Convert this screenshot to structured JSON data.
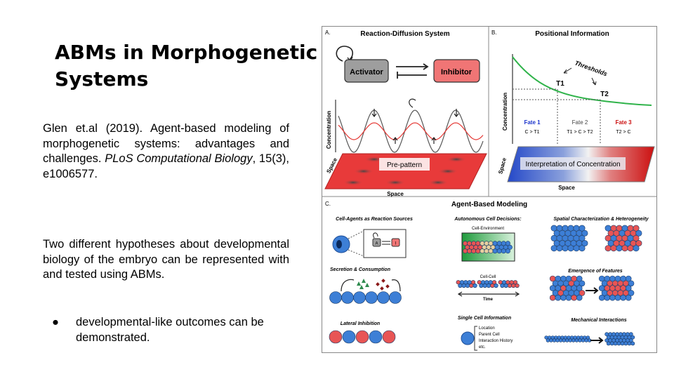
{
  "slide": {
    "title_line1": "ABMs in Morphogenetic",
    "title_line2": "Systems",
    "citation": {
      "part1": "Glen et.al (2019). Agent-based modeling of morphogenetic systems: advantages and challenges. ",
      "journal": "PLoS Computational Biology",
      "part2": ", 15(3), e1006577."
    },
    "paragraph": "Two different hypotheses about developmental biology of the embryo can be represented with and tested using ABMs.",
    "bullets": [
      {
        "marker": "●",
        "text": "developmental-like outcomes can be demonstrated."
      }
    ]
  },
  "figure": {
    "panel_a": {
      "letter": "A.",
      "title": "Reaction-Diffusion System",
      "activator": "Activator",
      "inhibitor": "Inhibitor",
      "ylabel": "Concentration",
      "space_side": "Space",
      "space_bottom": "Space",
      "prepattern": "Pre-pattern"
    },
    "panel_b": {
      "letter": "B.",
      "title": "Positional Information",
      "thresholds": "Thresholds",
      "t1": "T1",
      "t2": "T2",
      "ylabel": "Concentration",
      "fate1": "Fate 1",
      "fate1_rule": "C > T1",
      "fate2": "Fate 2",
      "fate2_rule": "T1 > C > T2",
      "fate3": "Fate 3",
      "fate3_rule": "T2 > C",
      "interpretation": "Interpretation of Concentration",
      "space_side": "Space",
      "space_bottom": "Space"
    },
    "panel_c": {
      "letter": "C.",
      "title": "Agent-Based Modeling",
      "cell_agents": "Cell-Agents as Reaction Sources",
      "agent_a": "A",
      "agent_i": "I",
      "secretion": "Secretion & Consumption",
      "lateral": "Lateral Inhibition",
      "autonomous": "Autonomous Cell Decisions:",
      "cell_env": "Cell-Environment",
      "cell_cell": "Cell-Cell",
      "time": "Time",
      "single_info": "Single Cell Information",
      "info_items": [
        "Location",
        "Parent Cell",
        "Interaction History",
        "etc."
      ],
      "spatial": "Spatial Characterization & Heterogeneity",
      "emergence": "Emergence of Features",
      "mechanical": "Mechanical Interactions"
    },
    "colors": {
      "green_curve": "#2fb34a",
      "red_curve": "#e53935",
      "blue_cell": "#3d7fd6",
      "red_cell": "#e85555",
      "fate1": "#1a33cc",
      "fate3": "#cc1111"
    }
  }
}
